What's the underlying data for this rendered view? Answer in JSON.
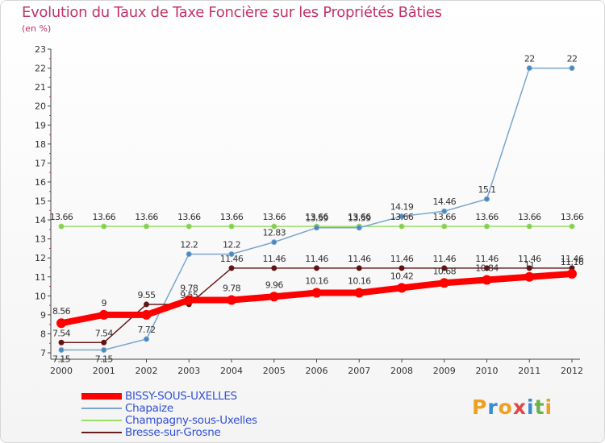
{
  "title": "Evolution du Taux de Taxe Foncière sur les Propriétés Bâties",
  "subtitle": "(en %)",
  "logo": {
    "letters": [
      "P",
      "r",
      "o",
      "x",
      "i",
      "t",
      "i"
    ],
    "colors": [
      "#f0a020",
      "#3a8ad0",
      "#f0a020",
      "#e04848",
      "#3a8ad0",
      "#6ab04c",
      "#f0a020"
    ]
  },
  "chart_data": {
    "type": "line",
    "title": "Evolution du Taux de Taxe Foncière sur les Propriétés Bâties",
    "ylabel": "(en %)",
    "xlabel": "",
    "categories": [
      "2000",
      "2001",
      "2002",
      "2003",
      "2004",
      "2005",
      "2006",
      "2007",
      "2008",
      "2009",
      "2010",
      "2011",
      "2012"
    ],
    "ylim": [
      7,
      23
    ],
    "yticks": [
      7,
      8,
      9,
      10,
      11,
      12,
      13,
      14,
      15,
      16,
      17,
      18,
      19,
      20,
      21,
      22,
      23
    ],
    "series": [
      {
        "name": "BISSY-SOUS-UXELLES",
        "color": "#ff0000",
        "width": 8,
        "marker": 11,
        "values": [
          8.56,
          9,
          9,
          9.78,
          9.78,
          9.96,
          10.16,
          10.16,
          10.42,
          10.68,
          10.84,
          11,
          11.16
        ],
        "labels": [
          "8.56",
          "9",
          "",
          "9.78",
          "9.78",
          "9.96",
          "10.16",
          "10.16",
          "10.42",
          "10.68",
          "10.84",
          "11",
          "11.16"
        ]
      },
      {
        "name": "Chapaize",
        "color": "#7aa6cf",
        "width": 1.5,
        "marker": 6,
        "values": [
          7.15,
          7.15,
          7.72,
          12.2,
          12.2,
          12.83,
          13.59,
          13.59,
          14.19,
          14.46,
          15.1,
          22,
          22
        ],
        "labels": [
          "7.15",
          "7.15",
          "7.72",
          "12.2",
          "12.2",
          "12.83",
          "13.59",
          "13.59",
          "14.19",
          "14.46",
          "15.1",
          "22",
          "22"
        ]
      },
      {
        "name": "Champagny-sous-Uxelles",
        "color": "#99dd66",
        "width": 1.5,
        "marker": 6,
        "values": [
          13.66,
          13.66,
          13.66,
          13.66,
          13.66,
          13.66,
          13.66,
          13.66,
          13.66,
          13.66,
          13.66,
          13.66,
          13.66
        ],
        "labels": [
          "13.66",
          "13.66",
          "13.66",
          "13.66",
          "13.66",
          "13.66",
          "13.66",
          "13.66",
          "13.66",
          "13.66",
          "13.66",
          "13.66",
          "13.66"
        ]
      },
      {
        "name": "Bresse-sur-Grosne",
        "color": "#6b1a1a",
        "width": 1.5,
        "marker": 6,
        "values": [
          7.54,
          7.54,
          9.55,
          9.55,
          11.46,
          11.46,
          11.46,
          11.46,
          11.46,
          11.46,
          11.46,
          11.46,
          11.46
        ],
        "labels": [
          "7.54",
          "7.54",
          "9.55",
          "9.55",
          "11.46",
          "11.46",
          "11.46",
          "11.46",
          "11.46",
          "11.46",
          "11.46",
          "11.46",
          "11.46"
        ]
      }
    ],
    "grid": false,
    "legend": "bottom-left"
  }
}
